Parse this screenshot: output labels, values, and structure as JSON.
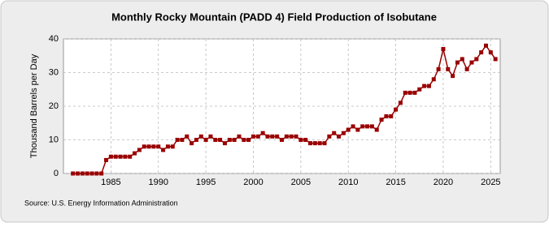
{
  "chart_data": {
    "type": "line",
    "title": "Monthly Rocky Mountain (PADD 4) Field Production of Isobutane",
    "y_axis_label": "Thousand Barrels per Day",
    "source": "Source: U.S. Energy Information Administration",
    "color": "#990000",
    "grid": true,
    "x": [
      1981.0,
      1981.5,
      1982.0,
      1982.5,
      1983.0,
      1983.5,
      1984.0,
      1984.5,
      1985.0,
      1985.5,
      1986.0,
      1986.5,
      1987.0,
      1987.5,
      1988.0,
      1988.5,
      1989.0,
      1989.5,
      1990.0,
      1990.5,
      1991.0,
      1991.5,
      1992.0,
      1992.5,
      1993.0,
      1993.5,
      1994.0,
      1994.5,
      1995.0,
      1995.5,
      1996.0,
      1996.5,
      1997.0,
      1997.5,
      1998.0,
      1998.5,
      1999.0,
      1999.5,
      2000.0,
      2000.5,
      2001.0,
      2001.5,
      2002.0,
      2002.5,
      2003.0,
      2003.5,
      2004.0,
      2004.5,
      2005.0,
      2005.5,
      2006.0,
      2006.5,
      2007.0,
      2007.5,
      2008.0,
      2008.5,
      2009.0,
      2009.5,
      2010.0,
      2010.5,
      2011.0,
      2011.5,
      2012.0,
      2012.5,
      2013.0,
      2013.5,
      2014.0,
      2014.5,
      2015.0,
      2015.5,
      2016.0,
      2016.5,
      2017.0,
      2017.5,
      2018.0,
      2018.5,
      2019.0,
      2019.5,
      2020.0,
      2020.5,
      2021.0,
      2021.5,
      2022.0,
      2022.5,
      2023.0,
      2023.5,
      2024.0,
      2024.5,
      2025.0,
      2025.5
    ],
    "values": [
      0,
      0,
      0,
      0,
      0,
      0,
      0,
      4,
      5,
      5,
      5,
      5,
      5,
      6,
      7,
      8,
      8,
      8,
      8,
      7,
      8,
      8,
      10,
      10,
      11,
      9,
      10,
      11,
      10,
      11,
      10,
      10,
      9,
      10,
      10,
      11,
      10,
      10,
      11,
      11,
      12,
      11,
      11,
      11,
      10,
      11,
      11,
      11,
      10,
      10,
      9,
      9,
      9,
      9,
      11,
      12,
      11,
      12,
      13,
      14,
      13,
      14,
      14,
      14,
      13,
      16,
      17,
      17,
      19,
      21,
      24,
      24,
      24,
      25,
      26,
      26,
      28,
      31,
      37,
      31,
      29,
      33,
      34,
      31,
      33,
      34,
      36,
      38,
      36,
      34
    ],
    "xlim": [
      1980,
      2026
    ],
    "xticks": [
      1985,
      1990,
      1995,
      2000,
      2005,
      2010,
      2015,
      2020,
      2025
    ],
    "ylim": [
      0,
      40
    ],
    "yticks": [
      0,
      10,
      20,
      30,
      40
    ]
  }
}
